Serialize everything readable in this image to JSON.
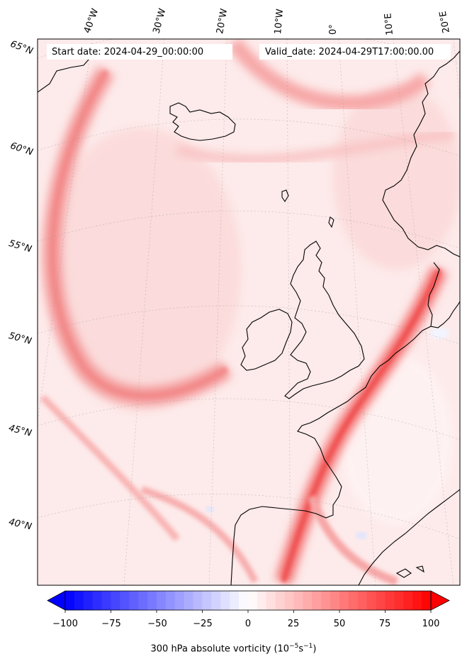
{
  "header": {
    "start_date": "Start date: 2024-04-29_00:00:00",
    "valid_date": "Valid_date: 2024-04-29T17:00:00.00"
  },
  "lon_labels": [
    "40°W",
    "30°W",
    "20°W",
    "10°W",
    "0°",
    "10°E",
    "20°E"
  ],
  "lat_labels": [
    "65°N",
    "60°N",
    "55°N",
    "50°N",
    "45°N",
    "40°N"
  ],
  "colorbar": {
    "ticks": [
      "−100",
      "−75",
      "−50",
      "−25",
      "0",
      "25",
      "50",
      "75",
      "100"
    ],
    "title_prefix": "300 hPa absolute vorticity (10",
    "title_exp1": "−5",
    "title_mid": "s",
    "title_exp2": "−1",
    "title_suffix": ")",
    "min": -100,
    "max": 100,
    "neg_color": "#0000ff",
    "pos_color": "#ff0000"
  }
}
